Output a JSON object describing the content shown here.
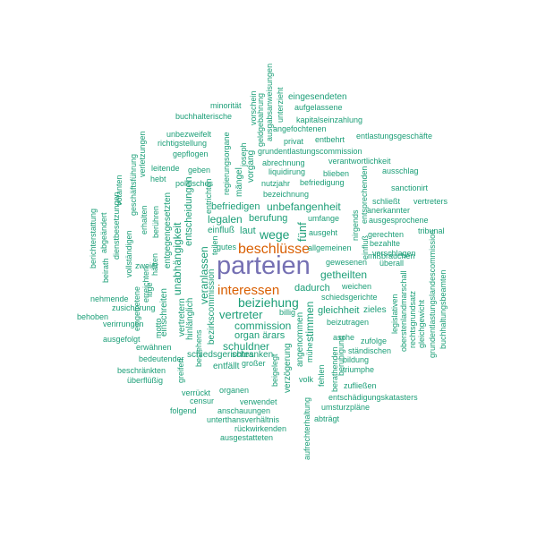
{
  "colors": {
    "background": "#ffffff",
    "primary_term": "#7570b3",
    "secondary_terms": "#d95f02",
    "other_terms": "#1b9e77"
  },
  "words": [
    "parteien",
    "beschlüsse",
    "interessen",
    "beiziehung",
    "vertreter",
    "wege",
    "commission",
    "organ ärars",
    "schuldner",
    "dadurch",
    "getheilten",
    "unbefangenheit",
    "berufung",
    "legalen",
    "befriedigen",
    "laut",
    "einfluß",
    "fünf",
    "stimmen",
    "gleichheit",
    "zieles",
    "veranlassen",
    "unabhängigkeit",
    "entscheidungen",
    "eingesendeten",
    "aufgelassene",
    "kapitalseinzahlung",
    "minorität",
    "buchhalterische",
    "angefochtenen",
    "entbehrt",
    "entlastungsgeschäfte",
    "unbezweifelt",
    "richtigstellung",
    "privat",
    "gepflogen",
    "grundentlastungscommission",
    "abrechnung",
    "verantwortlichkeit",
    "leitende",
    "geben",
    "liquidirung",
    "blieben",
    "ausschlag",
    "hebt",
    "politisches",
    "nutzjahr",
    "befriedigung",
    "bezeichnung",
    "sanctionirt",
    "schließt",
    "anerkannter",
    "vertreters",
    "ausgesprochene",
    "umfange",
    "ausgeht",
    "gerechten",
    "tribunal",
    "bezahlte",
    "vorschlagen",
    "allgemeinen",
    "mißbräuchen",
    "gewesenen",
    "überall",
    "weichen",
    "schiedsgerichte",
    "beizutragen",
    "billig",
    "asche",
    "zufolge",
    "ständischen",
    "bildung",
    "triumphe",
    "zufließen",
    "entschädigungskatasters",
    "umsturzpläne",
    "abträgt",
    "schiedsgerichtes",
    "schranken",
    "entfällt",
    "großer",
    "organen",
    "verwendet",
    "anschauungen",
    "unterthansverhältnis",
    "rückwirkenden",
    "ausgestatteten",
    "folgend",
    "censur",
    "verrückt",
    "bedeutender",
    "beschränkten",
    "überflüßig",
    "erwähnen",
    "ausgefolgt",
    "verirrungen",
    "behoben",
    "zusicherung",
    "nehmende",
    "zweier",
    "gutes",
    "teilen",
    "vorgang",
    "mängel",
    "joseph",
    "regierungsorgane",
    "ausgabsanweisungen",
    "geldgebahrung",
    "vorschein",
    "unterzieht",
    "buchhaltungsbeamten",
    "grundentlastungslandescommission",
    "gleichgewicht",
    "rechtsgrundsatz",
    "oberstenlandmarschall",
    "legislativen",
    "einfluß",
    "nirgends",
    "entsprechenden",
    "berathenden",
    "fehlen",
    "beruhigung",
    "angenommen",
    "verzögerung",
    "beigelegt",
    "aufrechterhaltung",
    "mühe",
    "volk",
    "entrichten",
    "vertretern",
    "hinlänglich",
    "bezirkscommission",
    "bestehens",
    "erreichten",
    "eingetretene",
    "einschreiten",
    "entgegengesetzten",
    "erhalten",
    "berühren",
    "votanten",
    "verletzungen",
    "geschäftsführung",
    "dienstbesetzungen",
    "abgeändert",
    "beirath",
    "berichterstattung",
    "vollständigen",
    "hätten",
    "motto",
    "itige",
    "greifen"
  ]
}
